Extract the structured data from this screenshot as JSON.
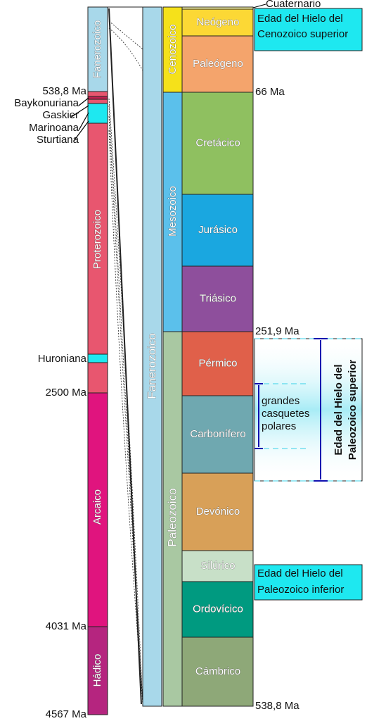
{
  "left_column": {
    "eons": [
      "Fanerozoico",
      "Proterozoico",
      "Arcaico",
      "Hádico"
    ],
    "ages": [
      "538,8 Ma",
      "2500 Ma",
      "4031 Ma",
      "4567 Ma"
    ],
    "glaciations": [
      "Baykonuriana",
      "Gaskier",
      "Marinoana",
      "Sturtiana",
      "Huroniana"
    ]
  },
  "eon": "Fanerozoico",
  "eras": [
    "Cenozoico",
    "Mesozoico",
    "Paleozoico"
  ],
  "periods": [
    "Cuaternario",
    "Neógeno",
    "Paleógeno",
    "Cretácico",
    "Jurásico",
    "Triásico",
    "Pérmico",
    "Carbonífero",
    "Devónico",
    "Silúrico",
    "Ordovícico",
    "Cámbrico"
  ],
  "ages": [
    "66 Ma",
    "251,9 Ma",
    "538,8 Ma"
  ],
  "ice_ages": {
    "cenozoic": [
      "Edad del Hielo del",
      "Cenozoico superior"
    ],
    "late_paleozoic": [
      "Edad del Hielo del",
      "Paleozoico superior"
    ],
    "polar_caps": [
      "grandes",
      "casquetes",
      "polares"
    ],
    "early_paleozoic": [
      "Edad del Hielo del",
      "Paleozoico inferior"
    ]
  }
}
